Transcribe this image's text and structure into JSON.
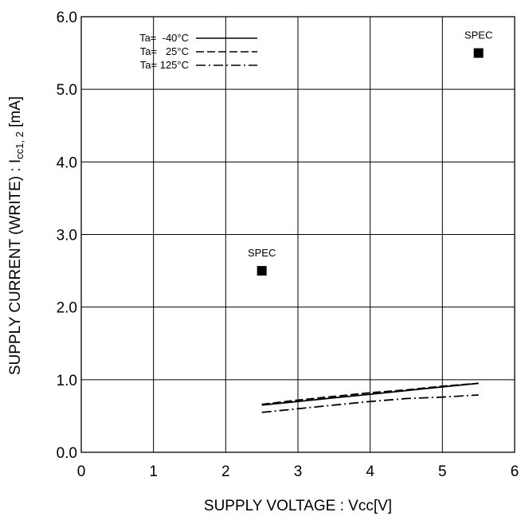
{
  "chart_data": {
    "type": "line",
    "xlabel": "SUPPLY VOLTAGE : Vcc[V]",
    "ylabel": {
      "prefix": "SUPPLY CURRENT (WRITE) : I",
      "subscript": "cc1, 2",
      "suffix": " [mA]"
    },
    "xlim": [
      0,
      6
    ],
    "ylim": [
      0,
      6
    ],
    "x_ticks": [
      "0",
      "1",
      "2",
      "3",
      "4",
      "5",
      "6"
    ],
    "y_ticks": [
      "0.0",
      "1.0",
      "2.0",
      "3.0",
      "4.0",
      "5.0",
      "6.0"
    ],
    "grid": true,
    "legend_position": "top-left",
    "series": [
      {
        "name": "Ta=  -40°C",
        "style": "solid",
        "x": [
          2.5,
          3.0,
          3.5,
          4.0,
          4.5,
          5.0,
          5.5
        ],
        "y": [
          0.65,
          0.7,
          0.75,
          0.8,
          0.85,
          0.9,
          0.95
        ]
      },
      {
        "name": "Ta=   25°C",
        "style": "dashed",
        "x": [
          2.5,
          3.0,
          3.5,
          4.0,
          4.5,
          5.0,
          5.5
        ],
        "y": [
          0.66,
          0.72,
          0.77,
          0.82,
          0.86,
          0.91,
          0.95
        ]
      },
      {
        "name": "Ta= 125°C",
        "style": "dashdot",
        "x": [
          2.5,
          3.0,
          3.5,
          4.0,
          4.5,
          5.0,
          5.5
        ],
        "y": [
          0.55,
          0.6,
          0.65,
          0.7,
          0.74,
          0.76,
          0.79
        ]
      }
    ],
    "spec_points": [
      {
        "label": "SPEC",
        "x": 2.5,
        "y": 2.5
      },
      {
        "label": "SPEC",
        "x": 5.5,
        "y": 5.5
      }
    ]
  }
}
